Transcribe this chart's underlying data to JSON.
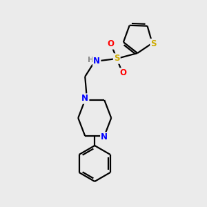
{
  "background_color": "#ebebeb",
  "bond_color": "#000000",
  "bond_width": 1.6,
  "atom_colors": {
    "N": "#0000ff",
    "S_sulfonamide": "#ccaa00",
    "S_thiophene": "#ccaa00",
    "O": "#ff0000",
    "H": "#888888",
    "C": "#000000"
  },
  "figsize": [
    3.0,
    3.0
  ],
  "dpi": 100
}
